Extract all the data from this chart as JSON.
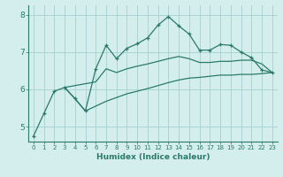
{
  "xlabel": "Humidex (Indice chaleur)",
  "bg_color": "#d4eeee",
  "grid_color": "#aad4d4",
  "line_color": "#2a7a6a",
  "spine_color": "#2a7a6a",
  "xlim": [
    -0.5,
    23.5
  ],
  "ylim": [
    4.6,
    8.25
  ],
  "yticks": [
    5,
    6,
    7,
    8
  ],
  "xticks": [
    0,
    1,
    2,
    3,
    4,
    5,
    6,
    7,
    8,
    9,
    10,
    11,
    12,
    13,
    14,
    15,
    16,
    17,
    18,
    19,
    20,
    21,
    22,
    23
  ],
  "curve1_x": [
    0,
    1,
    2,
    3,
    4,
    5,
    6,
    7,
    8,
    9,
    10,
    11,
    12,
    13,
    14,
    15,
    16,
    17,
    18,
    19,
    20,
    21,
    22,
    23
  ],
  "curve1_y": [
    4.75,
    5.35,
    5.95,
    6.05,
    5.75,
    5.42,
    6.55,
    7.18,
    6.82,
    7.1,
    7.22,
    7.38,
    7.72,
    7.95,
    7.7,
    7.48,
    7.05,
    7.05,
    7.2,
    7.18,
    7.0,
    6.85,
    6.52,
    6.45
  ],
  "curve2_x": [
    3,
    6,
    7,
    8,
    9,
    10,
    11,
    12,
    13,
    14,
    15,
    16,
    17,
    18,
    19,
    20,
    21,
    22,
    23
  ],
  "curve2_y": [
    6.05,
    6.2,
    6.55,
    6.45,
    6.55,
    6.62,
    6.68,
    6.75,
    6.82,
    6.88,
    6.82,
    6.72,
    6.72,
    6.75,
    6.75,
    6.78,
    6.78,
    6.68,
    6.45
  ],
  "curve3_x": [
    3,
    4,
    5,
    6,
    7,
    8,
    9,
    10,
    11,
    12,
    13,
    14,
    15,
    16,
    17,
    18,
    19,
    20,
    21,
    22,
    23
  ],
  "curve3_y": [
    6.05,
    5.75,
    5.42,
    5.55,
    5.68,
    5.78,
    5.88,
    5.95,
    6.02,
    6.1,
    6.18,
    6.25,
    6.3,
    6.32,
    6.35,
    6.38,
    6.38,
    6.4,
    6.4,
    6.42,
    6.45
  ]
}
